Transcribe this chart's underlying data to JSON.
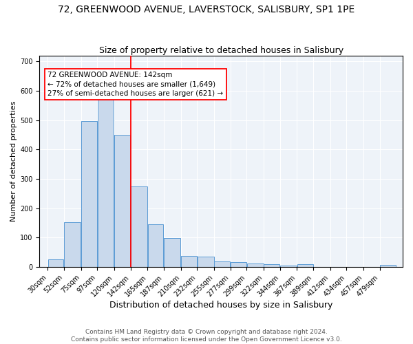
{
  "title1": "72, GREENWOOD AVENUE, LAVERSTOCK, SALISBURY, SP1 1PE",
  "title2": "Size of property relative to detached houses in Salisbury",
  "xlabel": "Distribution of detached houses by size in Salisbury",
  "ylabel": "Number of detached properties",
  "annotation_line1": "72 GREENWOOD AVENUE: 142sqm",
  "annotation_line2": "← 72% of detached houses are smaller (1,649)",
  "annotation_line3": "27% of semi-detached houses are larger (621) →",
  "footnote1": "Contains HM Land Registry data © Crown copyright and database right 2024.",
  "footnote2": "Contains public sector information licensed under the Open Government Licence v3.0.",
  "bar_color": "#c9d9ec",
  "bar_edge_color": "#5b9bd5",
  "bg_color": "#eef3f9",
  "grid_color": "#ffffff",
  "red_line_x": 142,
  "categories": [
    "30sqm",
    "52sqm",
    "75sqm",
    "97sqm",
    "120sqm",
    "142sqm",
    "165sqm",
    "187sqm",
    "210sqm",
    "232sqm",
    "255sqm",
    "277sqm",
    "299sqm",
    "322sqm",
    "344sqm",
    "367sqm",
    "389sqm",
    "412sqm",
    "434sqm",
    "457sqm",
    "479sqm"
  ],
  "values": [
    25,
    153,
    497,
    577,
    450,
    275,
    145,
    99,
    38,
    36,
    18,
    17,
    12,
    9,
    4,
    9,
    0,
    0,
    0,
    0,
    7
  ],
  "ylim_min": 0,
  "ylim_max": 720,
  "yticks": [
    0,
    100,
    200,
    300,
    400,
    500,
    600,
    700
  ],
  "title1_fontsize": 10,
  "title2_fontsize": 9,
  "xlabel_fontsize": 9,
  "ylabel_fontsize": 8,
  "tick_fontsize": 7,
  "annotation_fontsize": 7.5,
  "footnote_fontsize": 6.5
}
